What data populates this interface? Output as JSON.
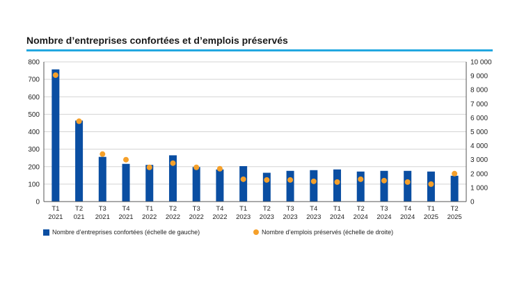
{
  "title": "Nombre d’entreprises confortées et d’emplois préservés",
  "chart_data": {
    "type": "bar",
    "categories": [
      "T1 2021",
      "T2 021",
      "T3 2021",
      "T4 2021",
      "T1 2022",
      "T2 2022",
      "T3 2022",
      "T4 2022",
      "T1 2023",
      "T2 2023",
      "T3 2023",
      "T4 2023",
      "T1 2024",
      "T2 2024",
      "T3 2024",
      "T4 2024",
      "T1 2025",
      "T2 2025"
    ],
    "category_lines": [
      [
        "T1",
        "2021"
      ],
      [
        "T2",
        "021"
      ],
      [
        "T3",
        "2021"
      ],
      [
        "T4",
        "2021"
      ],
      [
        "T1",
        "2022"
      ],
      [
        "T2",
        "2022"
      ],
      [
        "T3",
        "2022"
      ],
      [
        "T4",
        "2022"
      ],
      [
        "T1",
        "2023"
      ],
      [
        "T2",
        "2023"
      ],
      [
        "T3",
        "2023"
      ],
      [
        "T4",
        "2023"
      ],
      [
        "T1",
        "2024"
      ],
      [
        "T2",
        "2024"
      ],
      [
        "T3",
        "2024"
      ],
      [
        "T4",
        "2024"
      ],
      [
        "T1",
        "2025"
      ],
      [
        "T2",
        "2025"
      ]
    ],
    "series": [
      {
        "name": "Nombre d’entreprises confortées (échelle de gauche)",
        "type": "bar",
        "axis": "left",
        "color": "#0a4ea2",
        "values": [
          757,
          464,
          256,
          216,
          210,
          265,
          198,
          184,
          203,
          165,
          176,
          180,
          184,
          172,
          176,
          176,
          172,
          148
        ]
      },
      {
        "name": "Nombre d’emplois préservés (échelle de droite)",
        "type": "scatter",
        "axis": "right",
        "color": "#f5a02a",
        "values": [
          9050,
          5750,
          3400,
          3000,
          2450,
          2750,
          2450,
          2350,
          1600,
          1550,
          1550,
          1450,
          1400,
          1600,
          1500,
          1400,
          1250,
          2000
        ]
      }
    ],
    "y_left": {
      "min": 0,
      "max": 800,
      "ticks": [
        "800",
        "700",
        "600",
        "500",
        "400",
        "300",
        "200",
        "100",
        "0"
      ],
      "tick_values": [
        800,
        700,
        600,
        500,
        400,
        300,
        200,
        100,
        0
      ]
    },
    "y_right": {
      "min": 0,
      "max": 10000,
      "ticks": [
        "10 000",
        "9 000",
        "8 000",
        "7 000",
        "6 000",
        "5 000",
        "4 000",
        "3 000",
        "2 000",
        "1 000",
        "0"
      ],
      "tick_values": [
        10000,
        9000,
        8000,
        7000,
        6000,
        5000,
        4000,
        3000,
        2000,
        1000,
        0
      ]
    },
    "grid": true,
    "legend_position": "bottom"
  }
}
